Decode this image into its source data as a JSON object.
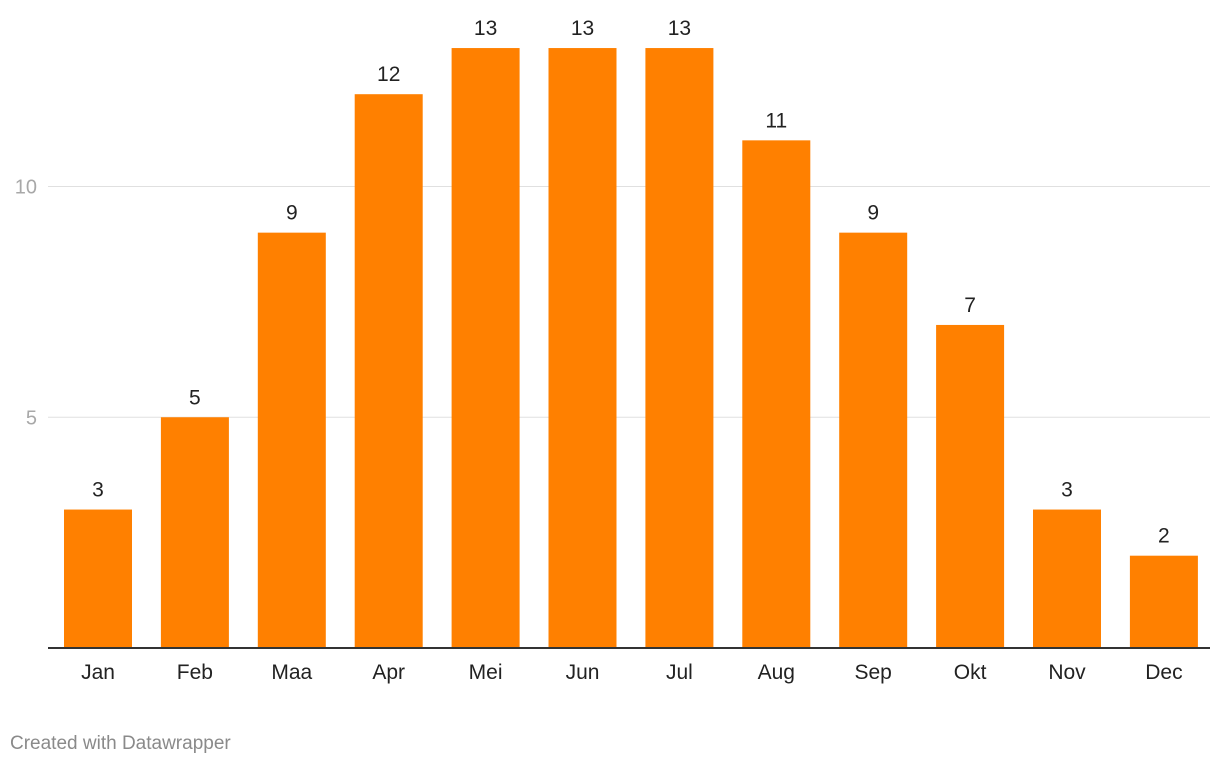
{
  "chart_data": {
    "type": "bar",
    "categories": [
      "Jan",
      "Feb",
      "Maa",
      "Apr",
      "Mei",
      "Jun",
      "Jul",
      "Aug",
      "Sep",
      "Okt",
      "Nov",
      "Dec"
    ],
    "values": [
      3,
      5,
      9,
      12,
      13,
      13,
      13,
      11,
      9,
      7,
      3,
      2
    ],
    "yticks": [
      5,
      10
    ],
    "ylim": [
      0,
      13
    ],
    "grid": true,
    "bar_color": "#ff8000",
    "data_labels": true
  },
  "footer": {
    "credit": "Created with Datawrapper"
  }
}
